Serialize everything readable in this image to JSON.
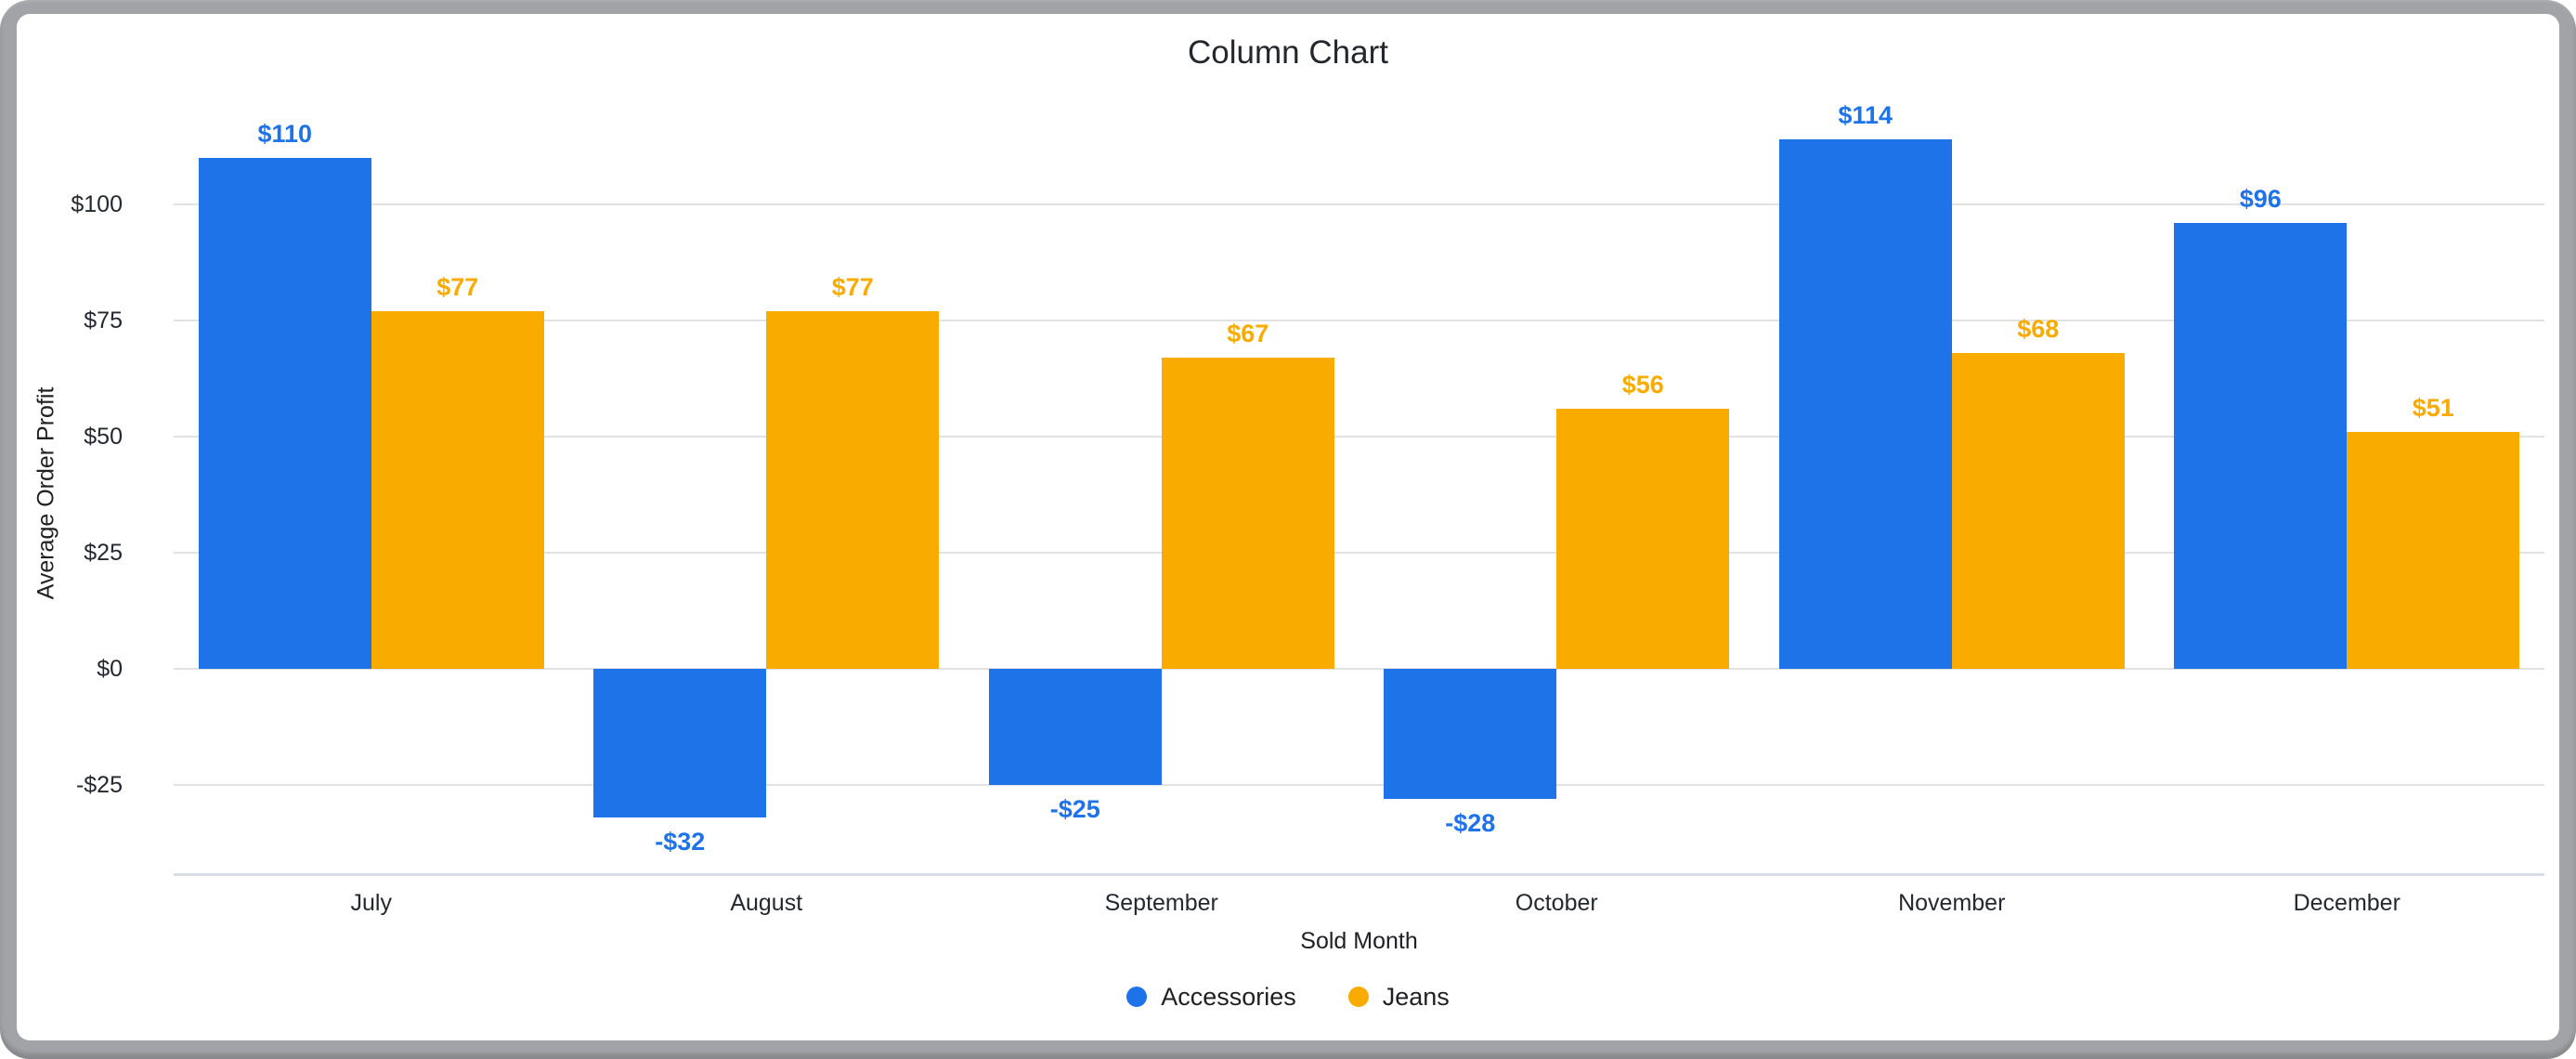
{
  "chart_data": {
    "type": "bar",
    "title": "Column Chart",
    "xlabel": "Sold Month",
    "ylabel": "Average Order Profit",
    "categories": [
      "July",
      "August",
      "September",
      "October",
      "November",
      "December"
    ],
    "series": [
      {
        "name": "Accessories",
        "color": "#1e73e8",
        "values": [
          110,
          -32,
          -25,
          -28,
          114,
          96
        ],
        "labels": [
          "$110",
          "-$32",
          "-$25",
          "-$28",
          "$114",
          "$96"
        ]
      },
      {
        "name": "Jeans",
        "color": "#f9ab00",
        "values": [
          77,
          77,
          67,
          56,
          68,
          51
        ],
        "labels": [
          "$77",
          "$77",
          "$67",
          "$56",
          "$68",
          "$51"
        ]
      }
    ],
    "y_ticks": [
      {
        "value": 100,
        "label": "$100"
      },
      {
        "value": 75,
        "label": "$75"
      },
      {
        "value": 50,
        "label": "$50"
      },
      {
        "value": 25,
        "label": "$25"
      },
      {
        "value": 0,
        "label": "$0"
      },
      {
        "value": -25,
        "label": "-$25"
      }
    ],
    "ylim": [
      -44.2,
      116
    ],
    "grid": true,
    "legend_position": "bottom"
  },
  "theme": {
    "frame_color": "#a1a3a6",
    "card_color": "#ffffff",
    "gridline_color": "#e2e2e2",
    "axis_line_color": "#d9dde6",
    "text_color": "#202124"
  }
}
